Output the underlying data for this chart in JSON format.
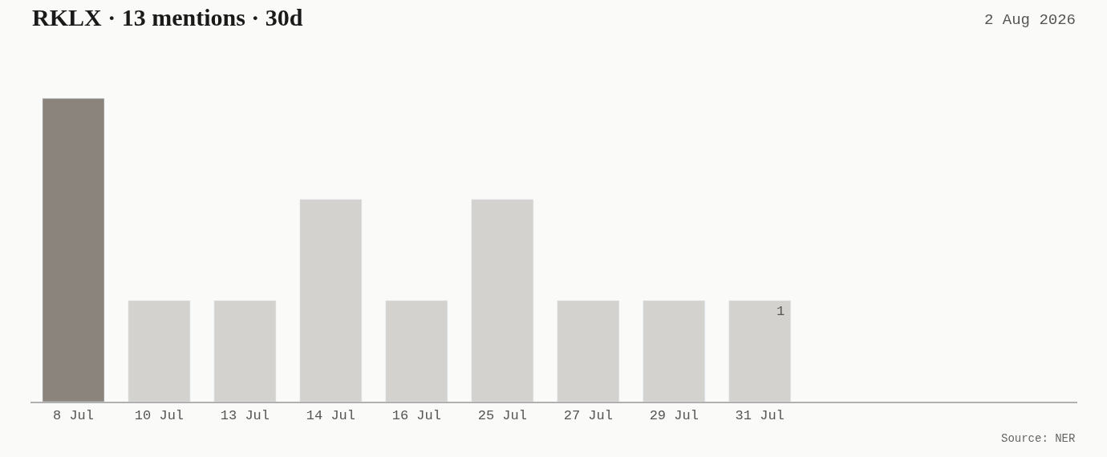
{
  "chart_data": {
    "type": "bar",
    "title": "RKLX · 13 mentions · 30d",
    "subtitle": "2 Aug 2026",
    "categories": [
      "8 Jul",
      "10 Jul",
      "13 Jul",
      "14 Jul",
      "16 Jul",
      "25 Jul",
      "27 Jul",
      "29 Jul",
      "31 Jul",
      null,
      null,
      null
    ],
    "values": [
      3,
      1,
      1,
      2,
      1,
      2,
      1,
      1,
      1,
      null,
      null,
      null
    ],
    "colors": [
      "#8a847c",
      "#d3d2ce",
      "#d3d2ce",
      "#d3d2ce",
      "#d3d2ce",
      "#d3d2ce",
      "#d3d2ce",
      "#d3d2ce",
      "#d3d2ce",
      null,
      null,
      null
    ],
    "value_labels": [
      null,
      null,
      null,
      null,
      null,
      null,
      null,
      null,
      "1",
      null,
      null,
      null
    ],
    "annotations": [
      "Source: NER"
    ],
    "grid": false,
    "legend": false
  }
}
